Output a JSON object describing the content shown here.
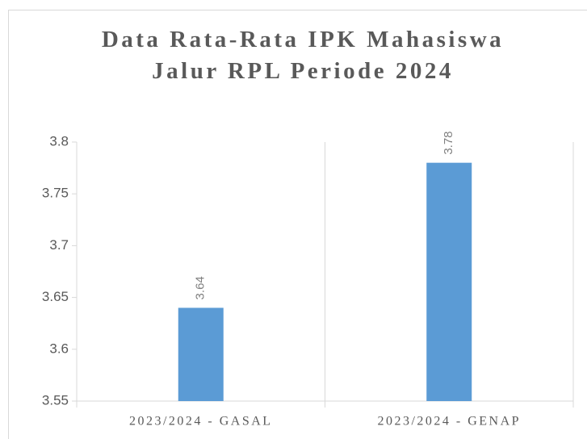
{
  "chart_data": {
    "type": "bar",
    "title": "Data Rata-Rata IPK Mahasiswa Jalur RPL Periode 2024",
    "categories": [
      "2023/2024 - GASAL",
      "2023/2024 - GENAP"
    ],
    "values": [
      3.64,
      3.78
    ],
    "color": "#5b9bd5",
    "ylim": [
      3.55,
      3.8
    ],
    "yticks": [
      3.55,
      3.6,
      3.65,
      3.7,
      3.75,
      3.8
    ]
  }
}
